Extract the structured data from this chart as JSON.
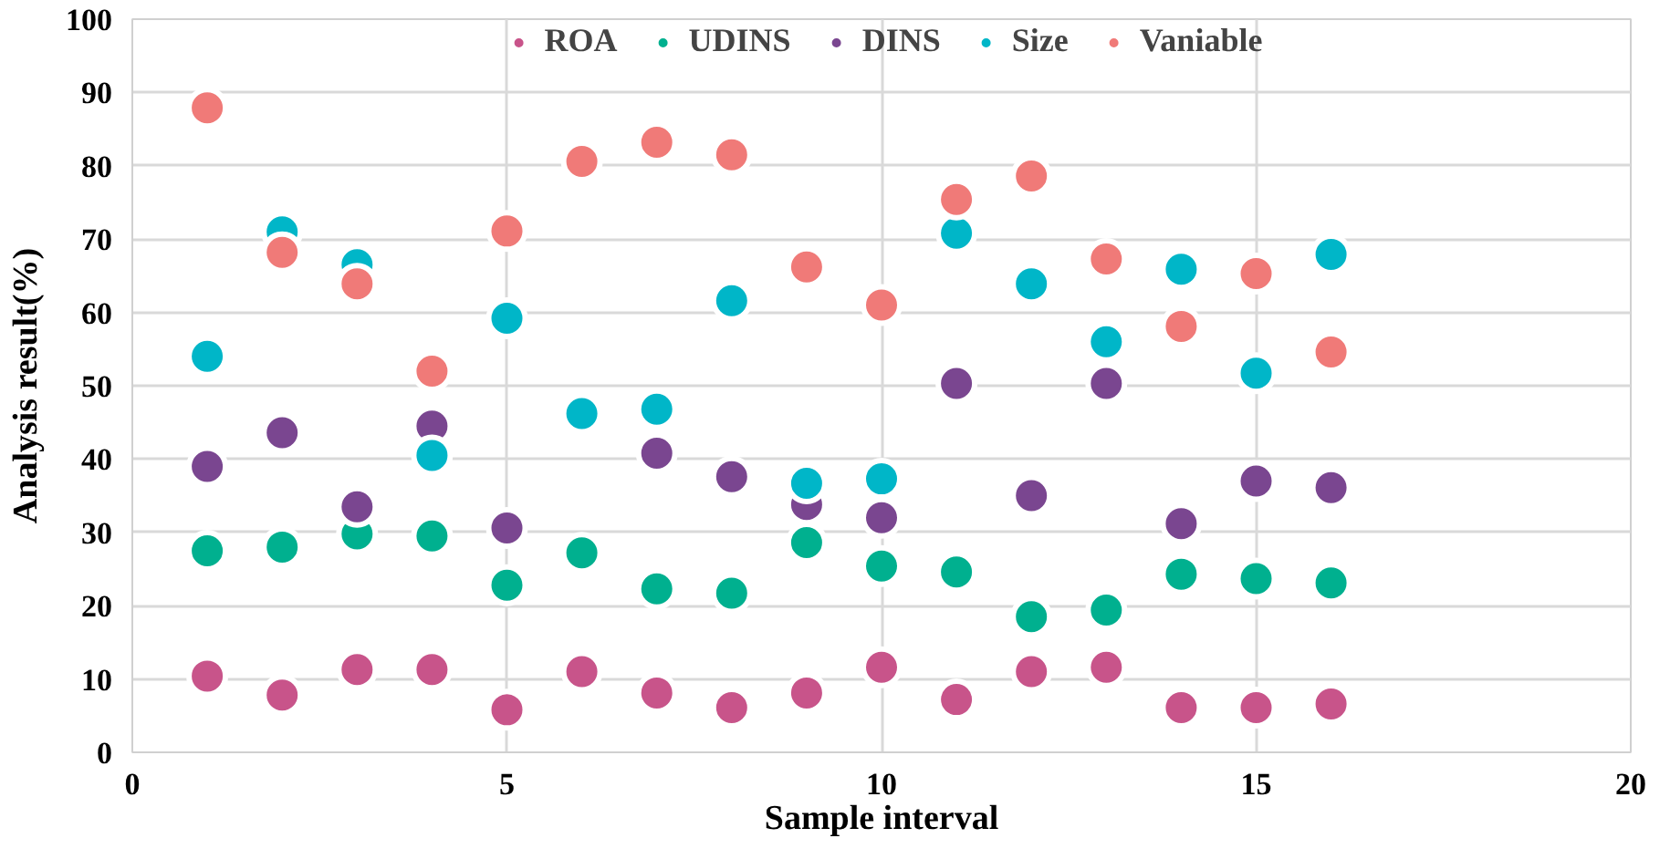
{
  "chart_data": {
    "type": "scatter",
    "xlabel": "Sample interval",
    "ylabel": "Analysis result(%)",
    "x": [
      1,
      2,
      3,
      4,
      5,
      6,
      7,
      8,
      9,
      10,
      11,
      12,
      13,
      14,
      15,
      16
    ],
    "xlim": [
      0,
      20
    ],
    "xticks": [
      0,
      5,
      10,
      15,
      20
    ],
    "ylim": [
      0,
      100
    ],
    "yticks": [
      0,
      10,
      20,
      30,
      40,
      50,
      60,
      70,
      80,
      90,
      100
    ],
    "grid": true,
    "legend": "top",
    "marker": "circle",
    "series": [
      {
        "name": "ROA",
        "color": "#c8548a",
        "values": [
          10.4,
          7.8,
          11.3,
          11.3,
          5.8,
          11,
          8.1,
          6.1,
          8.1,
          11.6,
          7.2,
          11,
          11.6,
          6.1,
          6.1,
          6.6
        ]
      },
      {
        "name": "UDINS",
        "color": "#00b08f",
        "values": [
          27.5,
          28,
          29.8,
          29.5,
          22.8,
          27.2,
          22.3,
          21.7,
          28.6,
          25.4,
          24.6,
          18.5,
          19.4,
          24.3,
          23.7,
          23.1
        ]
      },
      {
        "name": "DINS",
        "color": "#7a4690",
        "values": [
          39,
          43.6,
          33.5,
          44.5,
          30.6,
          null,
          40.8,
          37.6,
          33.8,
          32,
          50.3,
          35,
          50.3,
          31.2,
          37,
          36.1
        ]
      },
      {
        "name": "Size",
        "color": "#00b6c8",
        "values": [
          54,
          71,
          66.5,
          40.5,
          59.2,
          46.2,
          46.8,
          61.6,
          36.7,
          37.3,
          70.8,
          63.9,
          56,
          65.9,
          51.7,
          67.9
        ]
      },
      {
        "name": "Vaniable",
        "color": "#f07a78",
        "values": [
          87.9,
          68.2,
          63.9,
          52,
          71.1,
          80.6,
          83.2,
          81.5,
          66.2,
          61,
          75.4,
          78.6,
          67.3,
          58.1,
          65.3,
          54.6
        ]
      }
    ]
  }
}
